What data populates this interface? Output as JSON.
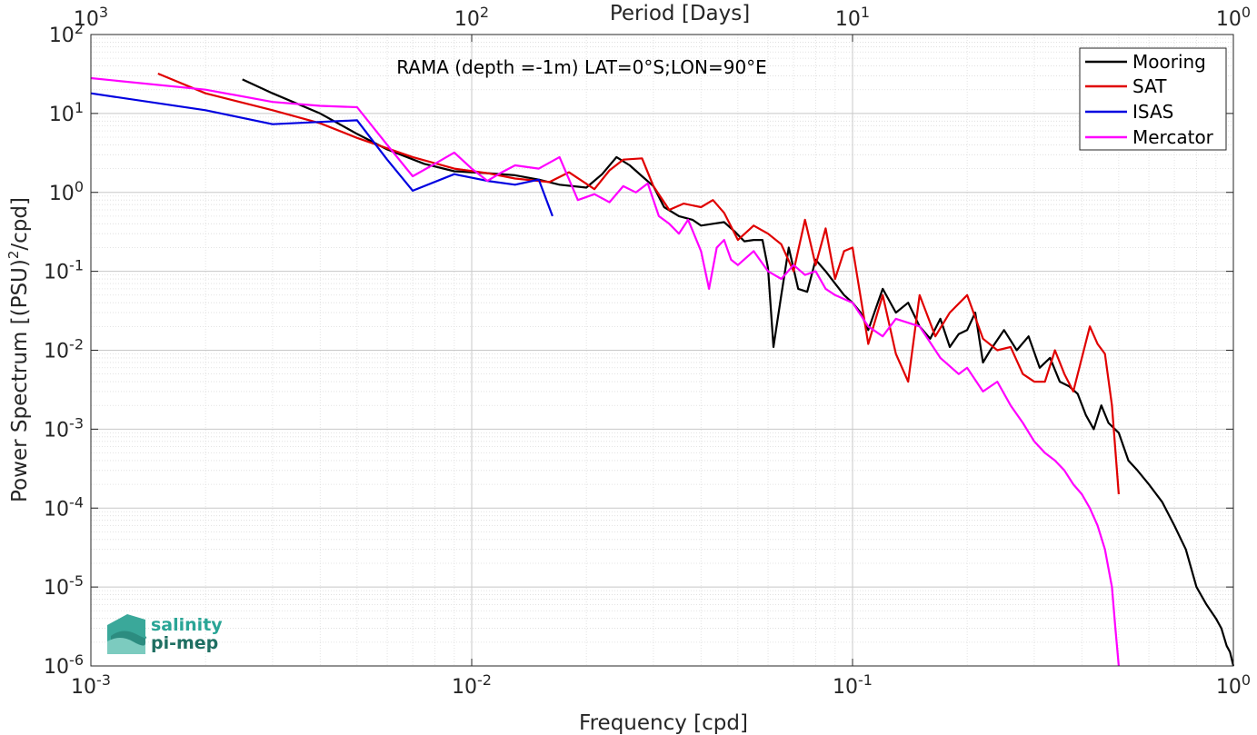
{
  "chart_data": {
    "type": "line",
    "title": "",
    "annotation": "RAMA (depth =-1m) LAT=0°S;LON=90°E",
    "xlabel": "Frequency [cpd]",
    "ylabel_main": "Power Spectrum [(PSU)",
    "ylabel_sup": "2",
    "ylabel_tail": "/cpd]",
    "top_axis_label": "Period [Days]",
    "x_scale": "log",
    "y_scale": "log",
    "xlim": [
      0.001,
      1
    ],
    "ylim": [
      1e-06,
      100
    ],
    "grid": true,
    "legend_position": "top-right",
    "x_ticks": [
      {
        "value": 0.001,
        "base": "10",
        "exp": "-3"
      },
      {
        "value": 0.01,
        "base": "10",
        "exp": "-2"
      },
      {
        "value": 0.1,
        "base": "10",
        "exp": "-1"
      },
      {
        "value": 1,
        "base": "10",
        "exp": "0"
      }
    ],
    "top_ticks": [
      {
        "value": 0.001,
        "base": "10",
        "exp": "3"
      },
      {
        "value": 0.01,
        "base": "10",
        "exp": "2"
      },
      {
        "value": 0.1,
        "base": "10",
        "exp": "1"
      },
      {
        "value": 1,
        "base": "10",
        "exp": "0"
      }
    ],
    "y_ticks": [
      {
        "value": 100,
        "base": "10",
        "exp": "2"
      },
      {
        "value": 10,
        "base": "10",
        "exp": "1"
      },
      {
        "value": 1,
        "base": "10",
        "exp": "0"
      },
      {
        "value": 0.1,
        "base": "10",
        "exp": "-1"
      },
      {
        "value": 0.01,
        "base": "10",
        "exp": "-2"
      },
      {
        "value": 0.001,
        "base": "10",
        "exp": "-3"
      },
      {
        "value": 0.0001,
        "base": "10",
        "exp": "-4"
      },
      {
        "value": 1e-05,
        "base": "10",
        "exp": "-5"
      },
      {
        "value": 1e-06,
        "base": "10",
        "exp": "-6"
      }
    ],
    "series": [
      {
        "name": "Mooring",
        "color": "#000000",
        "x": [
          0.0025,
          0.003,
          0.004,
          0.005,
          0.006,
          0.0075,
          0.009,
          0.011,
          0.013,
          0.015,
          0.017,
          0.02,
          0.022,
          0.024,
          0.026,
          0.028,
          0.03,
          0.032,
          0.035,
          0.038,
          0.04,
          0.043,
          0.046,
          0.049,
          0.052,
          0.055,
          0.058,
          0.06,
          0.062,
          0.065,
          0.068,
          0.072,
          0.076,
          0.08,
          0.085,
          0.09,
          0.095,
          0.1,
          0.105,
          0.11,
          0.12,
          0.13,
          0.14,
          0.15,
          0.16,
          0.17,
          0.18,
          0.19,
          0.2,
          0.21,
          0.22,
          0.23,
          0.25,
          0.27,
          0.29,
          0.31,
          0.33,
          0.35,
          0.37,
          0.39,
          0.41,
          0.43,
          0.45,
          0.47,
          0.5,
          0.53,
          0.56,
          0.6,
          0.65,
          0.7,
          0.75,
          0.8,
          0.85,
          0.9,
          0.93,
          0.96,
          0.98,
          1.0
        ],
        "y": [
          27,
          18,
          10,
          5.5,
          3.5,
          2.3,
          1.85,
          1.75,
          1.65,
          1.45,
          1.25,
          1.15,
          1.7,
          2.8,
          2.2,
          1.6,
          1.2,
          0.65,
          0.5,
          0.45,
          0.38,
          0.4,
          0.42,
          0.32,
          0.24,
          0.25,
          0.25,
          0.11,
          0.011,
          0.05,
          0.2,
          0.06,
          0.055,
          0.14,
          0.1,
          0.07,
          0.05,
          0.04,
          0.03,
          0.018,
          0.06,
          0.03,
          0.04,
          0.02,
          0.014,
          0.025,
          0.011,
          0.016,
          0.018,
          0.03,
          0.007,
          0.01,
          0.018,
          0.01,
          0.015,
          0.006,
          0.008,
          0.004,
          0.0035,
          0.0028,
          0.0015,
          0.001,
          0.002,
          0.0012,
          0.0009,
          0.0004,
          0.0003,
          0.0002,
          0.00012,
          6e-05,
          3e-05,
          1e-05,
          6e-06,
          4e-06,
          3e-06,
          1.8e-06,
          1.5e-06,
          1e-06
        ]
      },
      {
        "name": "SAT",
        "color": "#e00000",
        "x": [
          0.0015,
          0.002,
          0.003,
          0.004,
          0.005,
          0.007,
          0.009,
          0.011,
          0.013,
          0.016,
          0.018,
          0.021,
          0.023,
          0.025,
          0.028,
          0.03,
          0.033,
          0.036,
          0.04,
          0.043,
          0.046,
          0.05,
          0.055,
          0.06,
          0.065,
          0.07,
          0.075,
          0.08,
          0.085,
          0.09,
          0.095,
          0.1,
          0.11,
          0.12,
          0.13,
          0.14,
          0.15,
          0.165,
          0.18,
          0.2,
          0.22,
          0.24,
          0.26,
          0.28,
          0.3,
          0.32,
          0.34,
          0.36,
          0.38,
          0.4,
          0.42,
          0.44,
          0.46,
          0.48,
          0.5
        ],
        "y": [
          32,
          18,
          11,
          7.5,
          4.9,
          2.8,
          2.0,
          1.75,
          1.5,
          1.35,
          1.8,
          1.1,
          1.9,
          2.6,
          2.7,
          1.2,
          0.6,
          0.72,
          0.65,
          0.8,
          0.55,
          0.25,
          0.38,
          0.3,
          0.22,
          0.1,
          0.45,
          0.12,
          0.35,
          0.08,
          0.18,
          0.2,
          0.012,
          0.05,
          0.009,
          0.004,
          0.05,
          0.015,
          0.03,
          0.05,
          0.014,
          0.01,
          0.011,
          0.005,
          0.004,
          0.004,
          0.01,
          0.005,
          0.003,
          0.008,
          0.02,
          0.012,
          0.009,
          0.002,
          0.00015
        ]
      },
      {
        "name": "ISAS",
        "color": "#0000e0",
        "x": [
          0.001,
          0.002,
          0.003,
          0.004,
          0.005,
          0.006,
          0.007,
          0.009,
          0.011,
          0.013,
          0.015,
          0.0163
        ],
        "y": [
          18,
          11,
          7.3,
          7.8,
          8.2,
          2.6,
          1.05,
          1.7,
          1.4,
          1.25,
          1.45,
          0.5
        ]
      },
      {
        "name": "Mercator",
        "color": "#ff00ff",
        "x": [
          0.001,
          0.002,
          0.003,
          0.004,
          0.005,
          0.006,
          0.007,
          0.008,
          0.009,
          0.01,
          0.011,
          0.012,
          0.013,
          0.015,
          0.017,
          0.019,
          0.021,
          0.023,
          0.025,
          0.027,
          0.029,
          0.031,
          0.033,
          0.035,
          0.037,
          0.04,
          0.042,
          0.044,
          0.046,
          0.048,
          0.05,
          0.055,
          0.06,
          0.065,
          0.07,
          0.075,
          0.08,
          0.085,
          0.09,
          0.1,
          0.11,
          0.12,
          0.13,
          0.15,
          0.17,
          0.19,
          0.2,
          0.22,
          0.24,
          0.26,
          0.28,
          0.3,
          0.32,
          0.34,
          0.36,
          0.38,
          0.4,
          0.42,
          0.44,
          0.46,
          0.48,
          0.49,
          0.5
        ],
        "y": [
          28,
          20,
          14,
          12.5,
          12,
          4,
          1.6,
          2.3,
          3.2,
          2.0,
          1.4,
          1.8,
          2.2,
          2.0,
          2.8,
          0.8,
          0.95,
          0.75,
          1.2,
          1.0,
          1.3,
          0.5,
          0.4,
          0.3,
          0.45,
          0.18,
          0.06,
          0.2,
          0.25,
          0.14,
          0.12,
          0.18,
          0.1,
          0.08,
          0.12,
          0.09,
          0.1,
          0.06,
          0.05,
          0.04,
          0.02,
          0.015,
          0.025,
          0.02,
          0.008,
          0.005,
          0.006,
          0.003,
          0.004,
          0.002,
          0.0012,
          0.0007,
          0.0005,
          0.0004,
          0.0003,
          0.0002,
          0.00015,
          0.0001,
          6e-05,
          3e-05,
          1e-05,
          3e-06,
          1e-06
        ]
      }
    ]
  },
  "logo": {
    "line1": "salinity",
    "line2": "pi-mep"
  }
}
